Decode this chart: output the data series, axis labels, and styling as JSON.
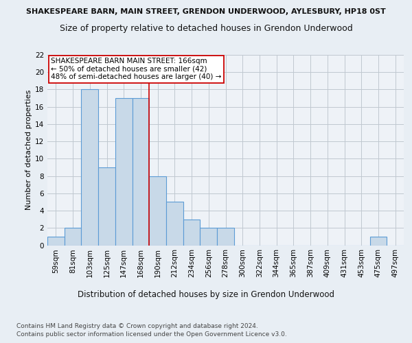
{
  "title": "SHAKESPEARE BARN, MAIN STREET, GRENDON UNDERWOOD, AYLESBURY, HP18 0ST",
  "subtitle": "Size of property relative to detached houses in Grendon Underwood",
  "xlabel": "Distribution of detached houses by size in Grendon Underwood",
  "ylabel": "Number of detached properties",
  "footnote1": "Contains HM Land Registry data © Crown copyright and database right 2024.",
  "footnote2": "Contains public sector information licensed under the Open Government Licence v3.0.",
  "bin_labels": [
    "59sqm",
    "81sqm",
    "103sqm",
    "125sqm",
    "147sqm",
    "168sqm",
    "190sqm",
    "212sqm",
    "234sqm",
    "256sqm",
    "278sqm",
    "300sqm",
    "322sqm",
    "344sqm",
    "365sqm",
    "387sqm",
    "409sqm",
    "431sqm",
    "453sqm",
    "475sqm",
    "497sqm"
  ],
  "bar_values": [
    1,
    2,
    18,
    9,
    17,
    17,
    8,
    5,
    3,
    2,
    2,
    0,
    0,
    0,
    0,
    0,
    0,
    0,
    0,
    1,
    0
  ],
  "bar_color": "#c8d9e8",
  "bar_edge_color": "#5b9bd5",
  "vline_x": 5.5,
  "vline_color": "#cc0000",
  "annotation_text": "SHAKESPEARE BARN MAIN STREET: 166sqm\n← 50% of detached houses are smaller (42)\n48% of semi-detached houses are larger (40) →",
  "annotation_box_color": "#ffffff",
  "annotation_box_edge": "#cc0000",
  "ylim": [
    0,
    22
  ],
  "yticks": [
    0,
    2,
    4,
    6,
    8,
    10,
    12,
    14,
    16,
    18,
    20,
    22
  ],
  "grid_color": "#c0c8d0",
  "bg_color": "#e8eef4",
  "plot_bg_color": "#eef2f7",
  "title_fontsize": 8.0,
  "subtitle_fontsize": 9.0,
  "xlabel_fontsize": 8.5,
  "ylabel_fontsize": 8.0,
  "tick_fontsize": 7.5,
  "annot_fontsize": 7.5,
  "footnote_fontsize": 6.5
}
